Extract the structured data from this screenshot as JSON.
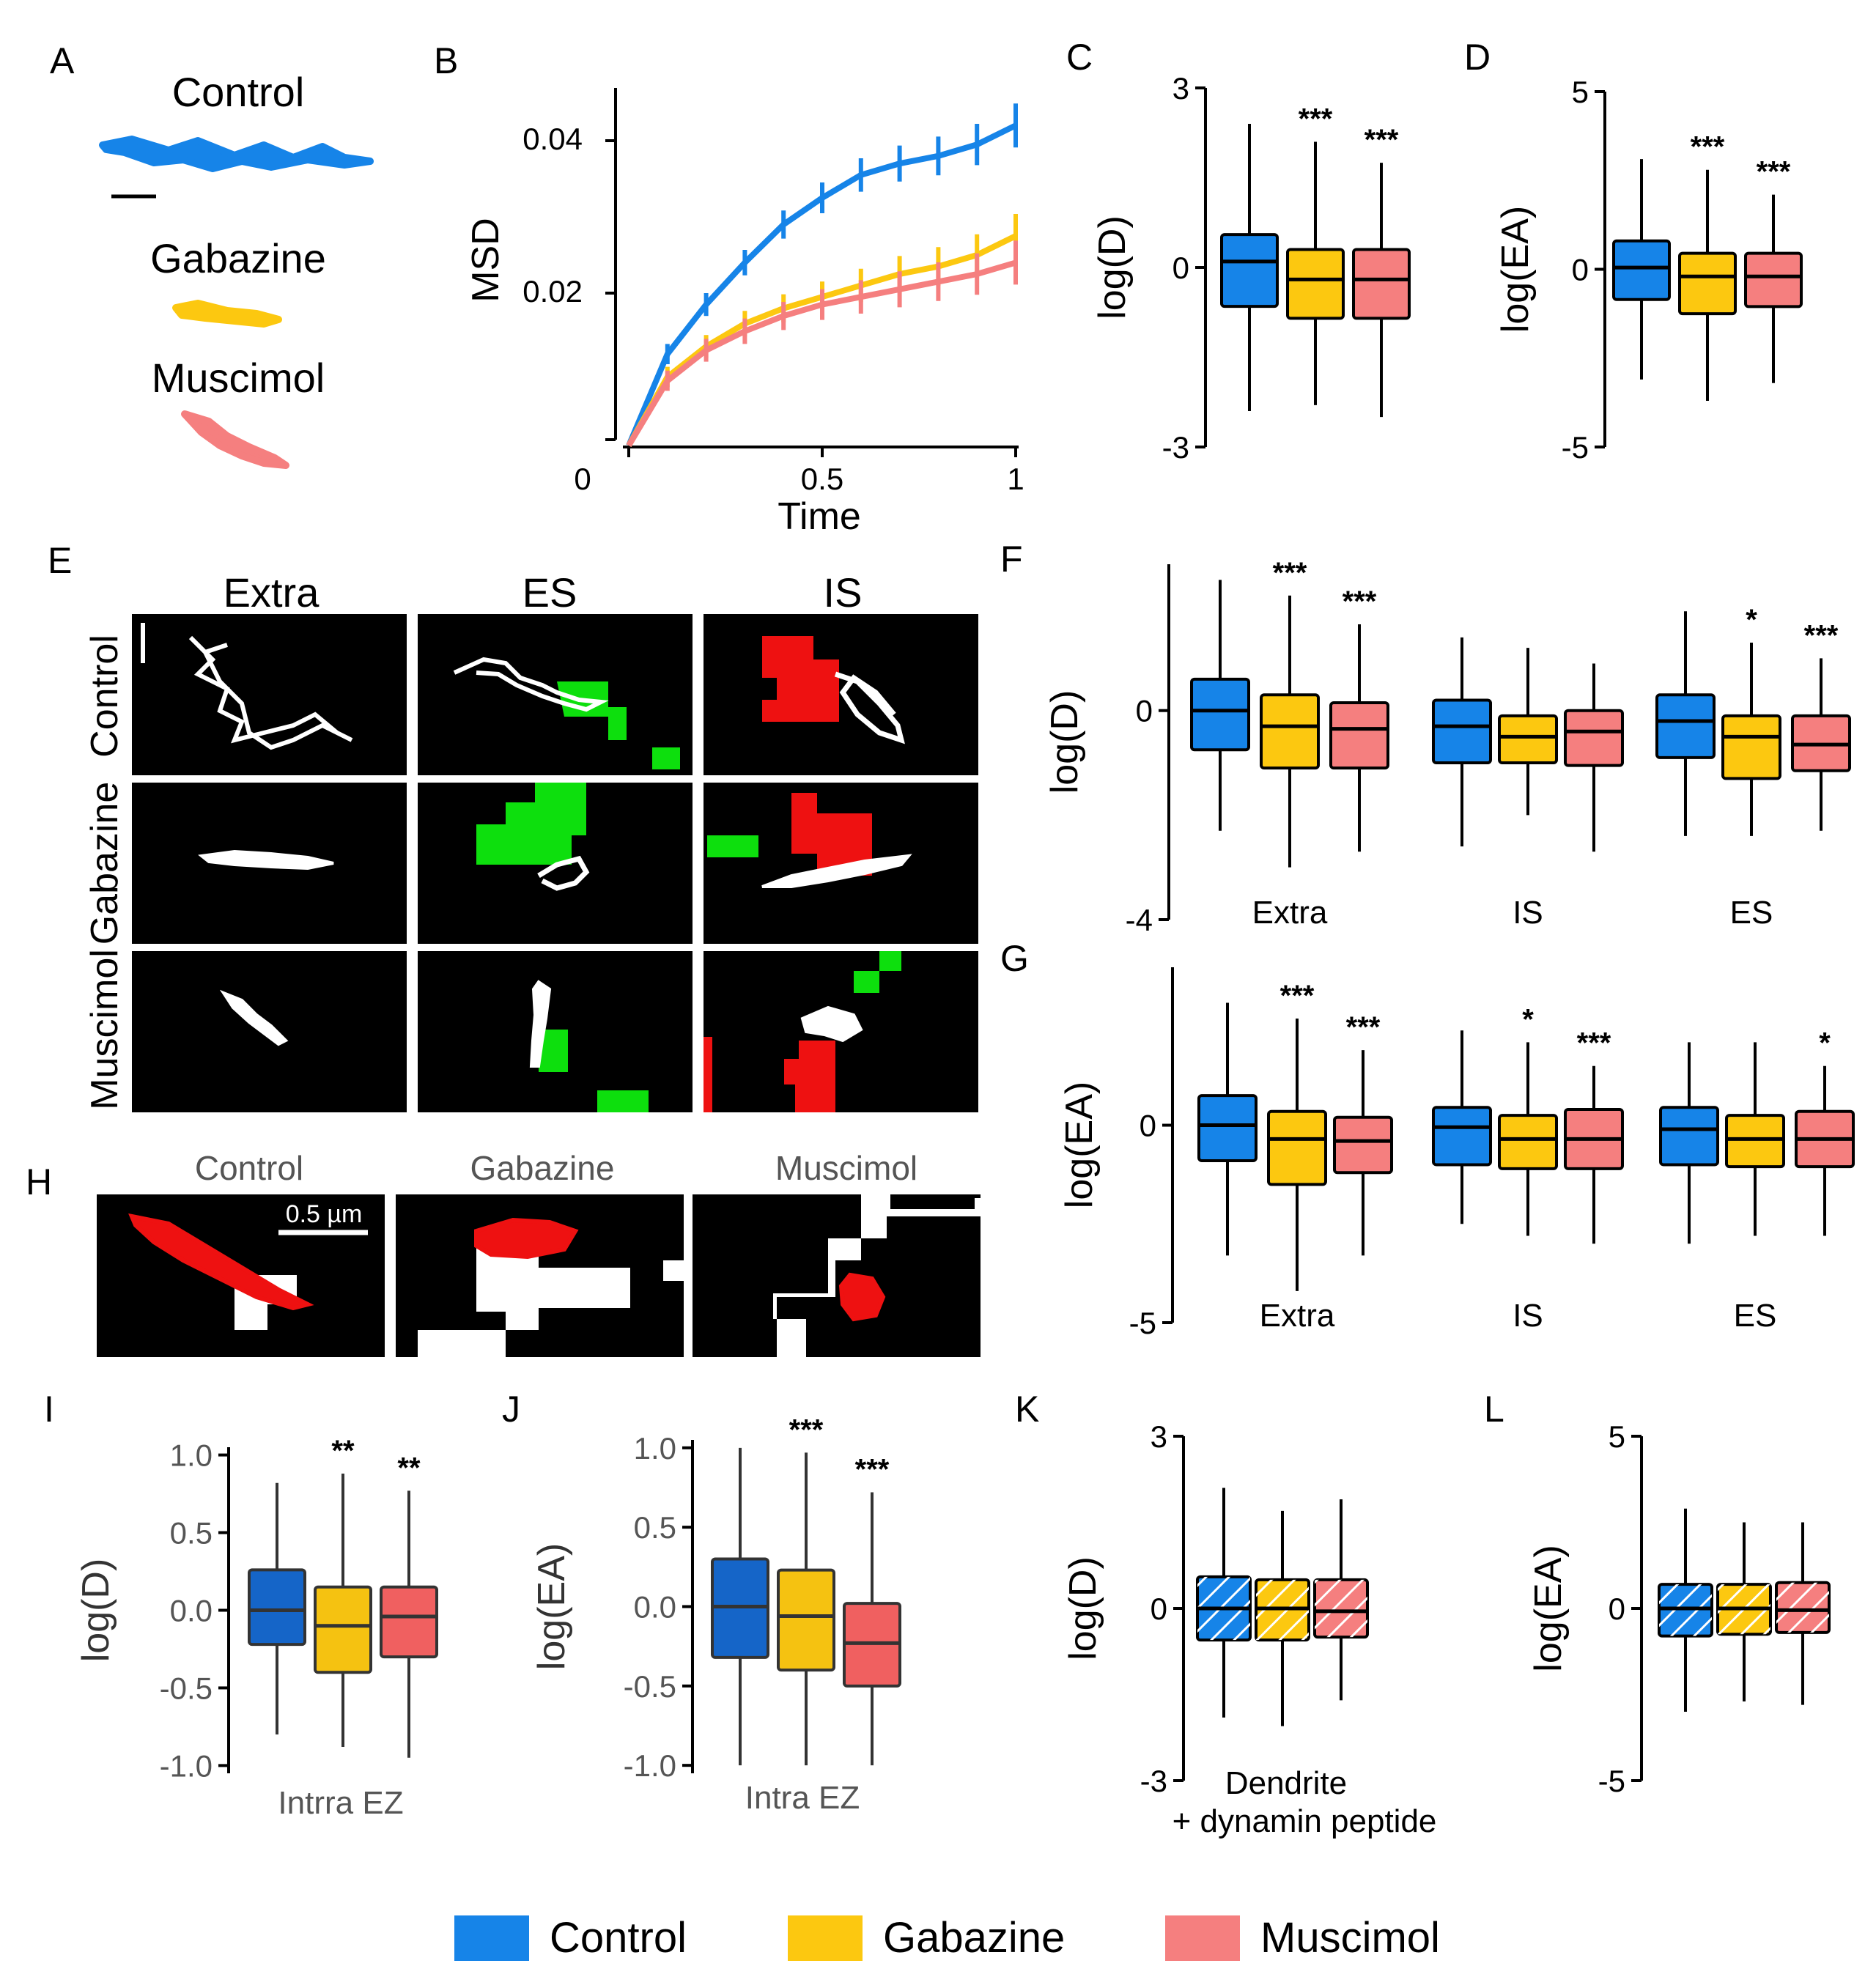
{
  "colors": {
    "Control": "#1684e8",
    "Gabazine": "#fcc810",
    "Muscimol": "#f57f7f",
    "roi_ES": "#0ddf0d",
    "roi_IS": "#ee1111"
  },
  "legend": {
    "items": [
      {
        "key": "Control",
        "label": "Control"
      },
      {
        "key": "Gabazine",
        "label": "Gabazine"
      },
      {
        "key": "Muscimol",
        "label": "Muscimol"
      }
    ]
  },
  "panelA": {
    "letter": "A",
    "labels": [
      "Control",
      "Gabazine",
      "Muscimol"
    ]
  },
  "panelE": {
    "letter": "E",
    "cols": [
      "Extra",
      "ES",
      "IS"
    ],
    "rows": [
      "Control",
      "Gabazine",
      "Muscimol"
    ]
  },
  "panelH": {
    "letter": "H",
    "cols": [
      "Control",
      "Gabazine",
      "Muscimol"
    ],
    "scale_label": "0.5 µm"
  },
  "chart_data": [
    {
      "id": "B",
      "letter": "B",
      "type": "line",
      "xlabel": "Time",
      "ylabel": "MSD",
      "xticks": [
        "0",
        "0.5",
        "1"
      ],
      "yticks": [
        "0.02",
        "0.04"
      ],
      "series": [
        {
          "name": "Control",
          "x": [
            0,
            0.1,
            0.2,
            0.3,
            0.4,
            0.5,
            0.6,
            0.7,
            0.8,
            0.9,
            1.0
          ],
          "y": [
            0,
            0.012,
            0.0185,
            0.024,
            0.029,
            0.0325,
            0.0355,
            0.037,
            0.038,
            0.0395,
            0.042
          ]
        },
        {
          "name": "Gabazine",
          "x": [
            0,
            0.1,
            0.2,
            0.3,
            0.4,
            0.5,
            0.6,
            0.7,
            0.8,
            0.9,
            1.0
          ],
          "y": [
            0,
            0.009,
            0.013,
            0.016,
            0.018,
            0.0195,
            0.021,
            0.0225,
            0.0235,
            0.025,
            0.0275
          ]
        },
        {
          "name": "Muscimol",
          "x": [
            0,
            0.1,
            0.2,
            0.3,
            0.4,
            0.5,
            0.6,
            0.7,
            0.8,
            0.9,
            1.0
          ],
          "y": [
            0,
            0.0085,
            0.0125,
            0.015,
            0.017,
            0.0185,
            0.0195,
            0.0205,
            0.0215,
            0.0225,
            0.024
          ]
        }
      ]
    },
    {
      "id": "C",
      "letter": "C",
      "type": "box",
      "ylabel": "log(D)",
      "yticks": [
        "3",
        "0",
        "-3"
      ],
      "groups": [
        {
          "label": "",
          "boxes": [
            {
              "name": "Control",
              "whislo": -2.4,
              "q1": -0.65,
              "med": 0.1,
              "q3": 0.55,
              "whishi": 2.4,
              "sig": ""
            },
            {
              "name": "Gabazine",
              "whislo": -2.3,
              "q1": -0.85,
              "med": -0.2,
              "q3": 0.3,
              "whishi": 2.1,
              "sig": "***"
            },
            {
              "name": "Muscimol",
              "whislo": -2.5,
              "q1": -0.85,
              "med": -0.2,
              "q3": 0.3,
              "whishi": 1.75,
              "sig": "***"
            }
          ]
        }
      ]
    },
    {
      "id": "D",
      "letter": "D",
      "type": "box",
      "ylabel": "log(EA)",
      "yticks": [
        "5",
        "0",
        "-5"
      ],
      "groups": [
        {
          "label": "",
          "boxes": [
            {
              "name": "Control",
              "whislo": -3.1,
              "q1": -0.85,
              "med": 0.05,
              "q3": 0.8,
              "whishi": 3.1,
              "sig": ""
            },
            {
              "name": "Gabazine",
              "whislo": -3.7,
              "q1": -1.25,
              "med": -0.2,
              "q3": 0.45,
              "whishi": 2.8,
              "sig": "***"
            },
            {
              "name": "Muscimol",
              "whislo": -3.2,
              "q1": -1.05,
              "med": -0.2,
              "q3": 0.45,
              "whishi": 2.1,
              "sig": "***"
            }
          ]
        }
      ]
    },
    {
      "id": "F",
      "letter": "F",
      "type": "box",
      "ylabel": "log(D)",
      "yticks": [
        "0",
        "-4"
      ],
      "groups": [
        {
          "label": "Extra",
          "boxes": [
            {
              "name": "Control",
              "whislo": -2.3,
              "q1": -0.75,
              "med": 0.0,
              "q3": 0.6,
              "whishi": 2.5,
              "sig": ""
            },
            {
              "name": "Gabazine",
              "whislo": -3.0,
              "q1": -1.1,
              "med": -0.3,
              "q3": 0.3,
              "whishi": 2.2,
              "sig": "***"
            },
            {
              "name": "Muscimol",
              "whislo": -2.7,
              "q1": -1.1,
              "med": -0.35,
              "q3": 0.15,
              "whishi": 1.65,
              "sig": "***"
            }
          ]
        },
        {
          "label": "IS",
          "boxes": [
            {
              "name": "Control",
              "whislo": -2.6,
              "q1": -1.0,
              "med": -0.3,
              "q3": 0.2,
              "whishi": 1.4,
              "sig": ""
            },
            {
              "name": "Gabazine",
              "whislo": -2.0,
              "q1": -1.0,
              "med": -0.5,
              "q3": -0.1,
              "whishi": 1.2,
              "sig": ""
            },
            {
              "name": "Muscimol",
              "whislo": -2.7,
              "q1": -1.05,
              "med": -0.4,
              "q3": 0.0,
              "whishi": 0.9,
              "sig": ""
            }
          ]
        },
        {
          "label": "ES",
          "boxes": [
            {
              "name": "Control",
              "whislo": -2.4,
              "q1": -0.9,
              "med": -0.2,
              "q3": 0.3,
              "whishi": 1.9,
              "sig": ""
            },
            {
              "name": "Gabazine",
              "whislo": -2.4,
              "q1": -1.3,
              "med": -0.5,
              "q3": -0.1,
              "whishi": 1.3,
              "sig": "*"
            },
            {
              "name": "Muscimol",
              "whislo": -2.3,
              "q1": -1.15,
              "med": -0.65,
              "q3": -0.1,
              "whishi": 1.0,
              "sig": "***"
            }
          ]
        }
      ]
    },
    {
      "id": "G",
      "letter": "G",
      "type": "box",
      "ylabel": "log(EA)",
      "yticks": [
        "0",
        "-5"
      ],
      "groups": [
        {
          "label": "Extra",
          "boxes": [
            {
              "name": "Control",
              "whislo": -3.3,
              "q1": -0.9,
              "med": 0.0,
              "q3": 0.75,
              "whishi": 3.1,
              "sig": ""
            },
            {
              "name": "Gabazine",
              "whislo": -4.2,
              "q1": -1.5,
              "med": -0.35,
              "q3": 0.35,
              "whishi": 2.7,
              "sig": "***"
            },
            {
              "name": "Muscimol",
              "whislo": -3.3,
              "q1": -1.2,
              "med": -0.4,
              "q3": 0.2,
              "whishi": 1.9,
              "sig": "***"
            }
          ]
        },
        {
          "label": "IS",
          "boxes": [
            {
              "name": "Control",
              "whislo": -2.5,
              "q1": -1.0,
              "med": -0.05,
              "q3": 0.45,
              "whishi": 2.4,
              "sig": ""
            },
            {
              "name": "Gabazine",
              "whislo": -2.8,
              "q1": -1.1,
              "med": -0.35,
              "q3": 0.25,
              "whishi": 2.1,
              "sig": "*"
            },
            {
              "name": "Muscimol",
              "whislo": -3.0,
              "q1": -1.1,
              "med": -0.35,
              "q3": 0.4,
              "whishi": 1.5,
              "sig": "***"
            }
          ]
        },
        {
          "label": "ES",
          "boxes": [
            {
              "name": "Control",
              "whislo": -3.0,
              "q1": -1.0,
              "med": -0.1,
              "q3": 0.45,
              "whishi": 2.1,
              "sig": ""
            },
            {
              "name": "Gabazine",
              "whislo": -2.8,
              "q1": -1.05,
              "med": -0.35,
              "q3": 0.25,
              "whishi": 2.1,
              "sig": ""
            },
            {
              "name": "Muscimol",
              "whislo": -2.8,
              "q1": -1.05,
              "med": -0.35,
              "q3": 0.35,
              "whishi": 1.5,
              "sig": "*"
            }
          ]
        }
      ]
    },
    {
      "id": "I",
      "letter": "I",
      "type": "box",
      "ylabel": "log(D)",
      "xlabel": "Intrra EZ",
      "yticks": [
        "1.0",
        "0.5",
        "0.0",
        "-0.5",
        "-1.0"
      ],
      "groups": [
        {
          "label": "",
          "boxes": [
            {
              "name": "Control",
              "whislo": -0.8,
              "q1": -0.22,
              "med": 0.0,
              "q3": 0.26,
              "whishi": 0.82,
              "sig": ""
            },
            {
              "name": "Gabazine",
              "whislo": -0.88,
              "q1": -0.4,
              "med": -0.1,
              "q3": 0.15,
              "whishi": 0.88,
              "sig": "**"
            },
            {
              "name": "Muscimol",
              "whislo": -0.95,
              "q1": -0.3,
              "med": -0.04,
              "q3": 0.15,
              "whishi": 0.77,
              "sig": "**"
            }
          ]
        }
      ]
    },
    {
      "id": "J",
      "letter": "J",
      "type": "box",
      "ylabel": "log(EA)",
      "xlabel": "Intra EZ",
      "yticks": [
        "1.0",
        "0.5",
        "0.0",
        "-0.5",
        "-1.0"
      ],
      "groups": [
        {
          "label": "",
          "boxes": [
            {
              "name": "Control",
              "whislo": -1.0,
              "q1": -0.32,
              "med": 0.0,
              "q3": 0.3,
              "whishi": 1.0,
              "sig": ""
            },
            {
              "name": "Gabazine",
              "whislo": -1.0,
              "q1": -0.4,
              "med": -0.06,
              "q3": 0.23,
              "whishi": 0.97,
              "sig": "***"
            },
            {
              "name": "Muscimol",
              "whislo": -1.0,
              "q1": -0.5,
              "med": -0.23,
              "q3": 0.02,
              "whishi": 0.72,
              "sig": "***"
            }
          ]
        }
      ]
    },
    {
      "id": "K",
      "letter": "K",
      "type": "box",
      "ylabel": "log(D)",
      "xlabel": "Dendrite",
      "xlabel2": "+ dynamin peptide",
      "yticks": [
        "3",
        "0",
        "-3"
      ],
      "groups": [
        {
          "label": "",
          "boxes": [
            {
              "name": "Control",
              "whislo": -1.9,
              "q1": -0.55,
              "med": 0.0,
              "q3": 0.55,
              "whishi": 2.1,
              "sig": ""
            },
            {
              "name": "Gabazine",
              "whislo": -2.05,
              "q1": -0.55,
              "med": 0.0,
              "q3": 0.5,
              "whishi": 1.7,
              "sig": ""
            },
            {
              "name": "Muscimol",
              "whislo": -1.6,
              "q1": -0.5,
              "med": -0.05,
              "q3": 0.5,
              "whishi": 1.9,
              "sig": ""
            }
          ]
        }
      ]
    },
    {
      "id": "L",
      "letter": "L",
      "type": "box",
      "ylabel": "log(EA)",
      "yticks": [
        "5",
        "0",
        "-5"
      ],
      "groups": [
        {
          "label": "",
          "boxes": [
            {
              "name": "Control",
              "whislo": -3.0,
              "q1": -0.8,
              "med": 0.0,
              "q3": 0.7,
              "whishi": 2.9,
              "sig": ""
            },
            {
              "name": "Gabazine",
              "whislo": -2.7,
              "q1": -0.75,
              "med": 0.0,
              "q3": 0.7,
              "whishi": 2.5,
              "sig": ""
            },
            {
              "name": "Muscimol",
              "whislo": -2.8,
              "q1": -0.7,
              "med": -0.05,
              "q3": 0.75,
              "whishi": 2.5,
              "sig": ""
            }
          ]
        }
      ]
    }
  ]
}
